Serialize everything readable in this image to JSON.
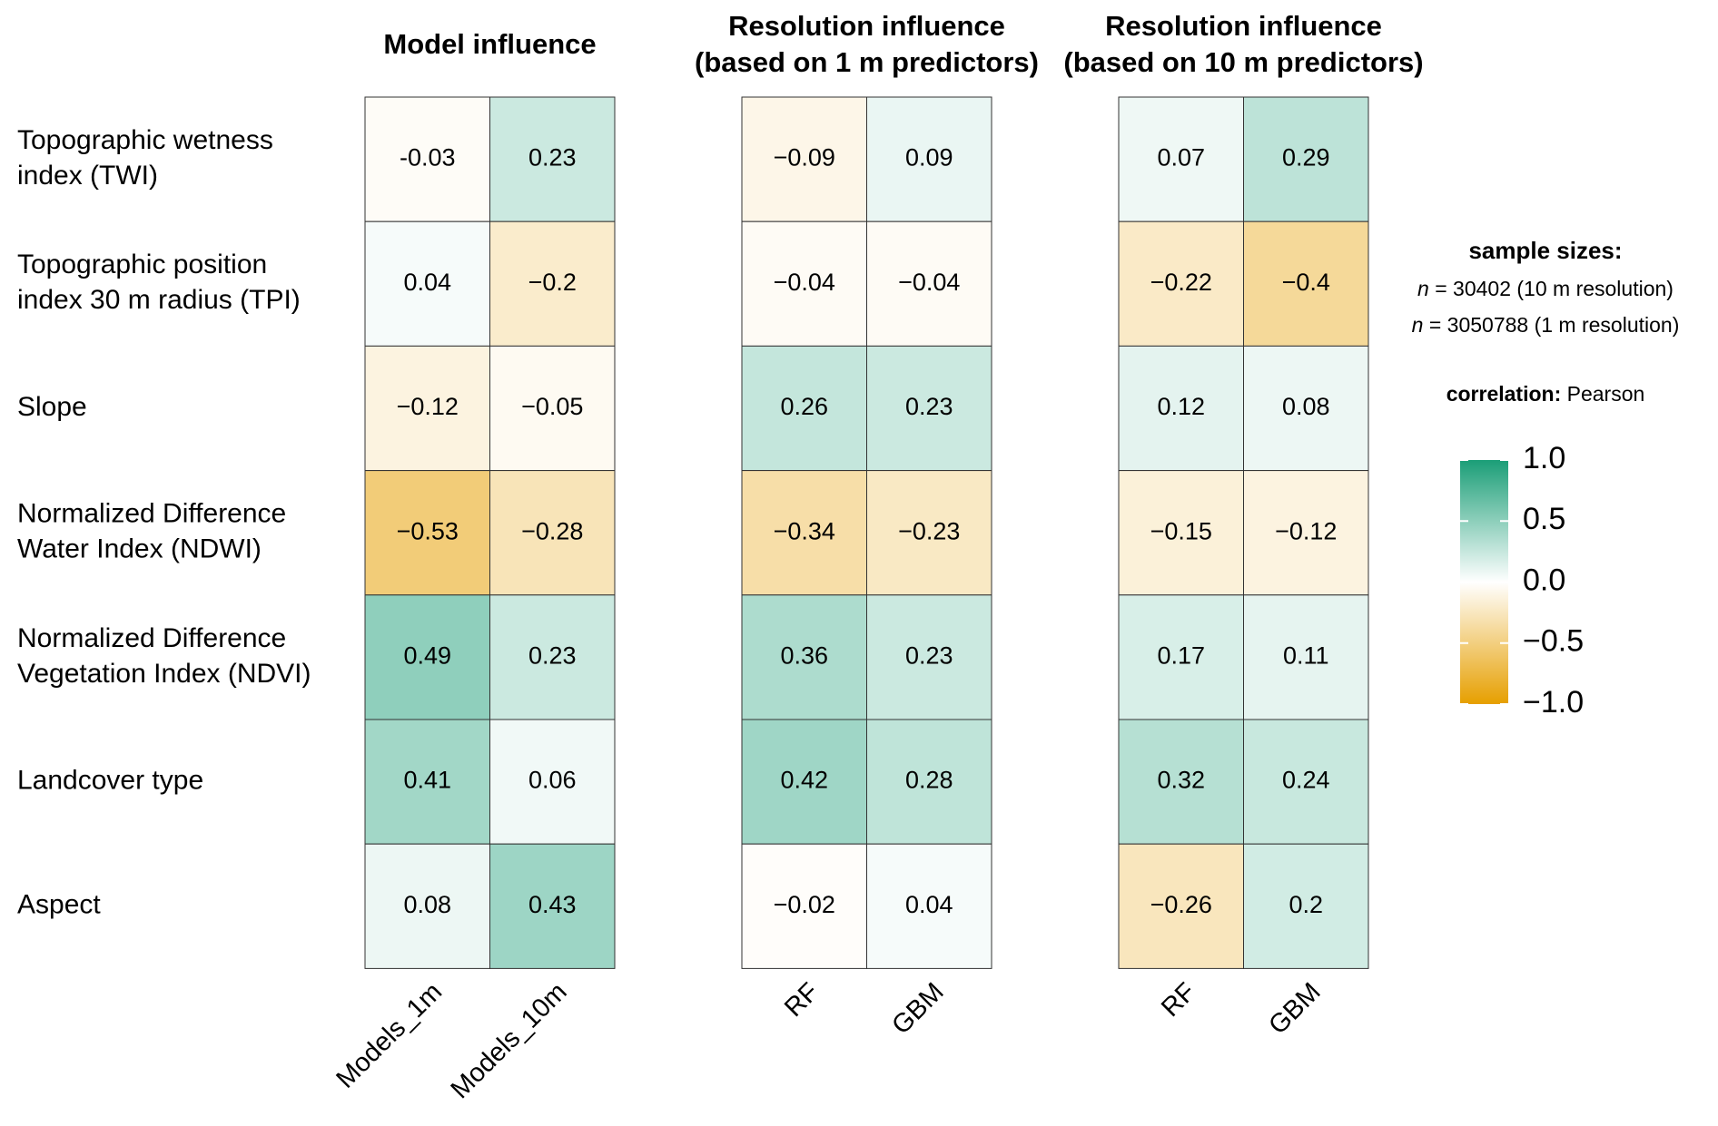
{
  "row_labels": [
    [
      "Topographic wetness",
      "index (TWI)"
    ],
    [
      "Topographic position",
      "index 30 m radius (TPI)"
    ],
    [
      "Slope"
    ],
    [
      "Normalized Difference",
      "Water Index (NDWI)"
    ],
    [
      "Normalized Difference",
      "Vegetation Index (NDVI)"
    ],
    [
      "Landcover type"
    ],
    [
      "Aspect"
    ]
  ],
  "chart_data": [
    {
      "type": "heatmap",
      "title": [
        "Model influence"
      ],
      "series": [
        {
          "name": "Models_1m",
          "values": [
            -0.03,
            0.04,
            -0.12,
            -0.53,
            0.49,
            0.41,
            0.08
          ],
          "value_labels": [
            "-0.03",
            "0.04",
            "−0.12",
            "−0.53",
            "0.49",
            "0.41",
            "0.08"
          ]
        },
        {
          "name": "Models_10m",
          "values": [
            0.23,
            -0.2,
            -0.05,
            -0.28,
            0.23,
            0.06,
            0.43
          ],
          "value_labels": [
            "0.23",
            "−0.2",
            "−0.05",
            "−0.28",
            "0.23",
            "0.06",
            "0.43"
          ]
        }
      ]
    },
    {
      "type": "heatmap",
      "title": [
        "Resolution influence",
        "(based on 1 m predictors)"
      ],
      "series": [
        {
          "name": "RF",
          "values": [
            -0.09,
            -0.04,
            0.26,
            -0.34,
            0.36,
            0.42,
            -0.02
          ],
          "value_labels": [
            "−0.09",
            "−0.04",
            "0.26",
            "−0.34",
            "0.36",
            "0.42",
            "−0.02"
          ]
        },
        {
          "name": "GBM",
          "values": [
            0.09,
            -0.04,
            0.23,
            -0.23,
            0.23,
            0.28,
            0.04
          ],
          "value_labels": [
            "0.09",
            "−0.04",
            "0.23",
            "−0.23",
            "0.23",
            "0.28",
            "0.04"
          ]
        }
      ]
    },
    {
      "type": "heatmap",
      "title": [
        "Resolution influence",
        "(based on 10 m predictors)"
      ],
      "series": [
        {
          "name": "RF",
          "values": [
            0.07,
            -0.22,
            0.12,
            -0.15,
            0.17,
            0.32,
            -0.26
          ],
          "value_labels": [
            "0.07",
            "−0.22",
            "0.12",
            "−0.15",
            "0.17",
            "0.32",
            "−0.26"
          ]
        },
        {
          "name": "GBM",
          "values": [
            0.29,
            -0.4,
            0.08,
            -0.12,
            0.11,
            0.24,
            0.2
          ],
          "value_labels": [
            "0.29",
            "−0.4",
            "0.08",
            "−0.12",
            "0.11",
            "0.24",
            "0.2"
          ]
        }
      ]
    }
  ],
  "legend": {
    "sample_title": "sample sizes:",
    "sample_lines": [
      {
        "var": "n",
        "text": " = 30402 (10 m resolution)"
      },
      {
        "var": "n",
        "text": " = 3050788 (1 m resolution)"
      }
    ],
    "correlation_label": "correlation:",
    "correlation_value": " Pearson",
    "colors": [
      "#e69f00",
      "#ffffff",
      "#1b9e77"
    ],
    "clim": [
      -1,
      1
    ],
    "cticks": [
      {
        "value": 1,
        "label": "1.0"
      },
      {
        "value": 0.5,
        "label": "0.5"
      },
      {
        "value": 0,
        "label": "0.0"
      },
      {
        "value": -0.5,
        "label": "−0.5"
      },
      {
        "value": -1,
        "label": "−1.0"
      }
    ]
  }
}
